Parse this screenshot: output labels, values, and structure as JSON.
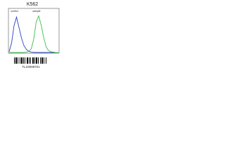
{
  "chart_data": {
    "type": "line",
    "title": "K562",
    "x": [
      0,
      5,
      10,
      15,
      20,
      25,
      30,
      35,
      40,
      45,
      50,
      55,
      60,
      65,
      70,
      75,
      80,
      85,
      90,
      95,
      100
    ],
    "series": [
      {
        "name": "control",
        "color": "#2b3fc4",
        "values": [
          2,
          25,
          70,
          92,
          65,
          38,
          18,
          8,
          3,
          1,
          0,
          0,
          0,
          0,
          0,
          0,
          0,
          0,
          0,
          0,
          0
        ]
      },
      {
        "name": "sample",
        "color": "#3cbf4a",
        "values": [
          0,
          0,
          0,
          0,
          0,
          0,
          0,
          1,
          3,
          10,
          35,
          80,
          95,
          72,
          40,
          15,
          5,
          2,
          1,
          0,
          0
        ]
      }
    ],
    "xlim": [
      0,
      100
    ],
    "ylim": [
      0,
      100
    ],
    "footnote": "TL23008701"
  }
}
